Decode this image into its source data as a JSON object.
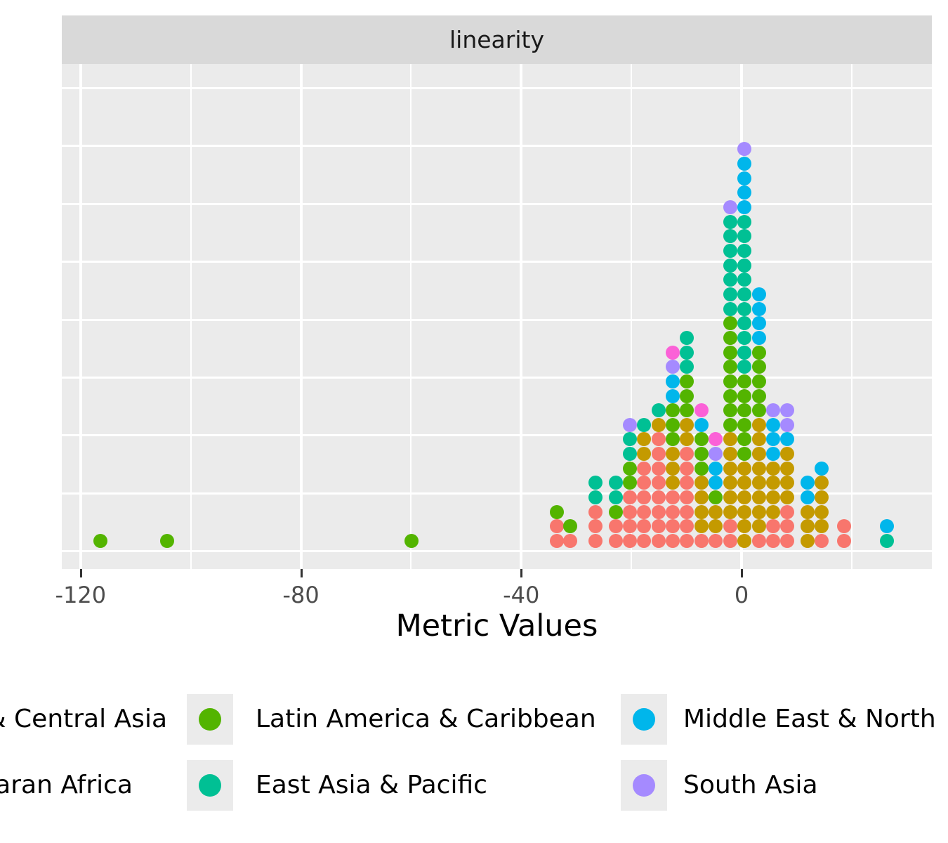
{
  "strip_title": "linearity",
  "axis": {
    "title": "Metric Values",
    "ticks": [
      {
        "label": "-120",
        "value": -120
      },
      {
        "label": "-80",
        "value": -80
      },
      {
        "label": "-40",
        "value": -40
      },
      {
        "label": "0",
        "value": 0
      }
    ]
  },
  "regions": {
    "eca": {
      "color": "#F8766D",
      "legend_label": "& Central Asia"
    },
    "ssa": {
      "color": "#C49A00",
      "legend_label": "aran Africa"
    },
    "lac": {
      "color": "#53B400",
      "legend_label": "Latin America & Caribbean"
    },
    "eap": {
      "color": "#00C094",
      "legend_label": "East Asia & Pacific"
    },
    "mena": {
      "color": "#00B6EB",
      "legend_label": "Middle East & North"
    },
    "sa": {
      "color": "#A58AFF",
      "legend_label": "South Asia"
    },
    "pink": {
      "color": "#FB61D7"
    }
  },
  "legend": {
    "rows": [
      [
        {
          "region": "eca",
          "label": "& Central Asia",
          "key_visible": false,
          "truncated": "left"
        },
        {
          "region": "lac",
          "label": "Latin America & Caribbean",
          "key_visible": true
        },
        {
          "region": "mena",
          "label": "Middle East & North",
          "key_visible": true,
          "truncated": "right"
        }
      ],
      [
        {
          "region": "ssa",
          "label": "aran Africa",
          "key_visible": false,
          "truncated": "left"
        },
        {
          "region": "eap",
          "label": "East Asia & Pacific",
          "key_visible": true
        },
        {
          "region": "sa",
          "label": "South Asia",
          "key_visible": true
        }
      ]
    ]
  },
  "chart_data": {
    "type": "dotplot",
    "title": "linearity",
    "xlabel": "Metric Values",
    "x_ticks": [
      -120,
      -80,
      -40,
      0
    ],
    "x_range": [
      -124,
      34
    ],
    "grid": "on",
    "legend_position": "bottom",
    "stack_note": "each entry is one dot; stacks listed bottom-to-top",
    "columns": [
      {
        "x": -116.4,
        "stack": [
          "lac"
        ]
      },
      {
        "x": -104.3,
        "stack": [
          "lac"
        ]
      },
      {
        "x": -59.9,
        "stack": [
          "lac"
        ]
      },
      {
        "x": -33.5,
        "stack": [
          "eca",
          "eca",
          "lac"
        ]
      },
      {
        "x": -31.1,
        "stack": [
          "eca",
          "lac"
        ]
      },
      {
        "x": -26.5,
        "stack": [
          "eca",
          "eca",
          "eca",
          "eap",
          "eap"
        ]
      },
      {
        "x": -22.8,
        "stack": [
          "eca",
          "eca",
          "lac",
          "eap",
          "eap"
        ]
      },
      {
        "x": -20.3,
        "stack": [
          "eca",
          "eca",
          "eca",
          "eca",
          "lac",
          "lac",
          "eap",
          "eap",
          "sa"
        ]
      },
      {
        "x": -17.7,
        "stack": [
          "eca",
          "eca",
          "eca",
          "eca",
          "eca",
          "eca",
          "ssa",
          "ssa",
          "eap"
        ]
      },
      {
        "x": -15.0,
        "stack": [
          "eca",
          "eca",
          "eca",
          "eca",
          "eca",
          "eca",
          "eca",
          "eca",
          "ssa",
          "eap"
        ]
      },
      {
        "x": -12.5,
        "stack": [
          "eca",
          "eca",
          "eca",
          "eca",
          "ssa",
          "ssa",
          "ssa",
          "lac",
          "lac",
          "lac",
          "mena",
          "mena",
          "sa",
          "pink"
        ]
      },
      {
        "x": -9.9,
        "stack": [
          "eca",
          "eca",
          "eca",
          "eca",
          "eca",
          "eca",
          "eca",
          "ssa",
          "ssa",
          "lac",
          "lac",
          "lac",
          "eap",
          "eap",
          "eap"
        ]
      },
      {
        "x": -7.3,
        "stack": [
          "eca",
          "ssa",
          "ssa",
          "ssa",
          "ssa",
          "lac",
          "lac",
          "lac",
          "mena",
          "pink"
        ]
      },
      {
        "x": -4.7,
        "stack": [
          "eca",
          "ssa",
          "ssa",
          "lac",
          "mena",
          "mena",
          "sa",
          "pink"
        ]
      },
      {
        "x": -2.0,
        "stack": [
          "eca",
          "eca",
          "ssa",
          "ssa",
          "ssa",
          "ssa",
          "ssa",
          "ssa",
          "lac",
          "lac",
          "lac",
          "lac",
          "lac",
          "lac",
          "lac",
          "lac",
          "eap",
          "eap",
          "eap",
          "eap",
          "eap",
          "eap",
          "eap",
          "sa"
        ]
      },
      {
        "x": 0.5,
        "stack": [
          "ssa",
          "ssa",
          "ssa",
          "ssa",
          "ssa",
          "ssa",
          "lac",
          "lac",
          "lac",
          "lac",
          "lac",
          "lac",
          "eap",
          "eap",
          "eap",
          "eap",
          "eap",
          "eap",
          "eap",
          "eap",
          "eap",
          "eap",
          "eap",
          "mena",
          "mena",
          "mena",
          "mena",
          "sa"
        ]
      },
      {
        "x": 3.2,
        "stack": [
          "eca",
          "ssa",
          "ssa",
          "ssa",
          "ssa",
          "ssa",
          "ssa",
          "ssa",
          "ssa",
          "lac",
          "lac",
          "lac",
          "lac",
          "lac",
          "mena",
          "mena",
          "mena",
          "mena"
        ]
      },
      {
        "x": 5.7,
        "stack": [
          "eca",
          "eca",
          "ssa",
          "ssa",
          "ssa",
          "ssa",
          "mena",
          "mena",
          "mena",
          "sa"
        ]
      },
      {
        "x": 8.3,
        "stack": [
          "eca",
          "eca",
          "eca",
          "ssa",
          "ssa",
          "ssa",
          "ssa",
          "mena",
          "sa",
          "sa"
        ]
      },
      {
        "x": 12.0,
        "stack": [
          "ssa",
          "ssa",
          "ssa",
          "mena",
          "mena"
        ]
      },
      {
        "x": 14.5,
        "stack": [
          "eca",
          "ssa",
          "ssa",
          "ssa",
          "ssa",
          "mena"
        ]
      },
      {
        "x": 18.6,
        "stack": [
          "eca",
          "eca"
        ]
      },
      {
        "x": 26.4,
        "stack": [
          "eap",
          "mena"
        ]
      }
    ]
  }
}
